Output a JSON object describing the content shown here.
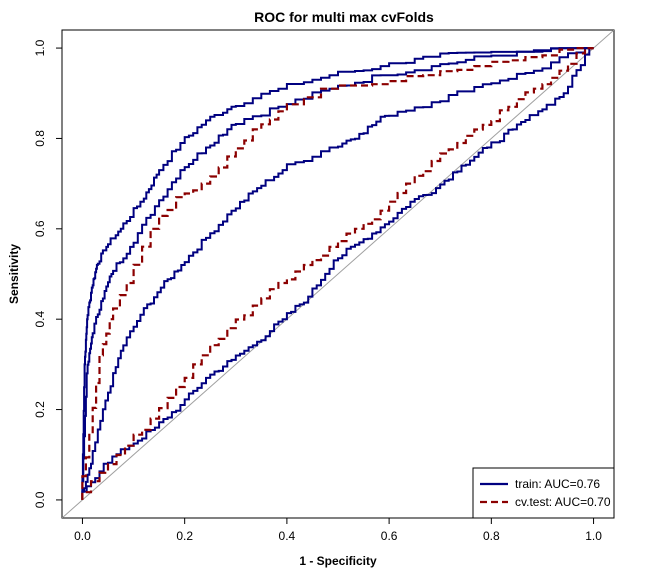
{
  "chart_data": {
    "type": "line",
    "title": "ROC for multi max cvFolds",
    "xlabel": "1 - Specificity",
    "ylabel": "Sensitivity",
    "xlim": [
      -0.04,
      1.04
    ],
    "ylim": [
      -0.04,
      1.04
    ],
    "x_ticks": [
      "0.0",
      "0.2",
      "0.4",
      "0.6",
      "0.8",
      "1.0"
    ],
    "y_ticks": [
      "0.0",
      "0.2",
      "0.4",
      "0.6",
      "0.8",
      "1.0"
    ],
    "grid": false,
    "legend_position": "bottom-right",
    "diagonal_reference": true,
    "series": [
      {
        "name": "train: AUC=0.76",
        "color": "#000080",
        "style": "solid",
        "curves": [
          {
            "role": "upper",
            "points": [
              [
                0,
                0
              ],
              [
                0.005,
                0.3
              ],
              [
                0.01,
                0.4
              ],
              [
                0.02,
                0.47
              ],
              [
                0.03,
                0.52
              ],
              [
                0.05,
                0.56
              ],
              [
                0.08,
                0.6
              ],
              [
                0.12,
                0.66
              ],
              [
                0.15,
                0.72
              ],
              [
                0.2,
                0.79
              ],
              [
                0.25,
                0.84
              ],
              [
                0.3,
                0.87
              ],
              [
                0.4,
                0.91
              ],
              [
                0.5,
                0.94
              ],
              [
                0.6,
                0.96
              ],
              [
                0.7,
                0.98
              ],
              [
                0.8,
                0.99
              ],
              [
                0.9,
                0.995
              ],
              [
                1,
                1
              ]
            ]
          },
          {
            "role": "mid",
            "points": [
              [
                0,
                0
              ],
              [
                0.01,
                0.28
              ],
              [
                0.02,
                0.36
              ],
              [
                0.04,
                0.44
              ],
              [
                0.06,
                0.5
              ],
              [
                0.1,
                0.56
              ],
              [
                0.15,
                0.65
              ],
              [
                0.2,
                0.73
              ],
              [
                0.25,
                0.78
              ],
              [
                0.3,
                0.83
              ],
              [
                0.4,
                0.87
              ],
              [
                0.5,
                0.91
              ],
              [
                0.6,
                0.94
              ],
              [
                0.7,
                0.96
              ],
              [
                0.8,
                0.98
              ],
              [
                0.9,
                0.99
              ],
              [
                1,
                1
              ]
            ]
          },
          {
            "role": "center",
            "points": [
              [
                0,
                0
              ],
              [
                0.02,
                0.08
              ],
              [
                0.05,
                0.22
              ],
              [
                0.08,
                0.33
              ],
              [
                0.12,
                0.41
              ],
              [
                0.16,
                0.47
              ],
              [
                0.2,
                0.52
              ],
              [
                0.25,
                0.58
              ],
              [
                0.3,
                0.64
              ],
              [
                0.35,
                0.69
              ],
              [
                0.4,
                0.73
              ],
              [
                0.5,
                0.78
              ],
              [
                0.55,
                0.81
              ],
              [
                0.6,
                0.85
              ],
              [
                0.7,
                0.88
              ],
              [
                0.8,
                0.92
              ],
              [
                0.9,
                0.95
              ],
              [
                1,
                1
              ]
            ]
          },
          {
            "role": "lower",
            "points": [
              [
                0,
                0
              ],
              [
                0.05,
                0.08
              ],
              [
                0.1,
                0.12
              ],
              [
                0.15,
                0.16
              ],
              [
                0.2,
                0.21
              ],
              [
                0.25,
                0.27
              ],
              [
                0.3,
                0.31
              ],
              [
                0.35,
                0.35
              ],
              [
                0.4,
                0.4
              ],
              [
                0.45,
                0.45
              ],
              [
                0.5,
                0.53
              ],
              [
                0.55,
                0.57
              ],
              [
                0.6,
                0.61
              ],
              [
                0.65,
                0.66
              ],
              [
                0.7,
                0.69
              ],
              [
                0.75,
                0.74
              ],
              [
                0.8,
                0.78
              ],
              [
                0.85,
                0.82
              ],
              [
                0.9,
                0.86
              ],
              [
                0.95,
                0.9
              ],
              [
                1,
                1
              ]
            ]
          }
        ]
      },
      {
        "name": "cv.test: AUC=0.70",
        "color": "#8b0000",
        "style": "dashed",
        "curves": [
          {
            "role": "upper",
            "points": [
              [
                0,
                0
              ],
              [
                0.02,
                0.15
              ],
              [
                0.04,
                0.32
              ],
              [
                0.06,
                0.4
              ],
              [
                0.1,
                0.48
              ],
              [
                0.15,
                0.6
              ],
              [
                0.2,
                0.67
              ],
              [
                0.25,
                0.7
              ],
              [
                0.3,
                0.76
              ],
              [
                0.35,
                0.82
              ],
              [
                0.4,
                0.86
              ],
              [
                0.5,
                0.91
              ],
              [
                0.6,
                0.92
              ],
              [
                0.7,
                0.94
              ],
              [
                0.8,
                0.96
              ],
              [
                0.9,
                0.98
              ],
              [
                1,
                1
              ]
            ]
          },
          {
            "role": "lower",
            "points": [
              [
                0,
                0
              ],
              [
                0.05,
                0.06
              ],
              [
                0.1,
                0.12
              ],
              [
                0.15,
                0.18
              ],
              [
                0.2,
                0.25
              ],
              [
                0.25,
                0.32
              ],
              [
                0.3,
                0.38
              ],
              [
                0.35,
                0.43
              ],
              [
                0.4,
                0.48
              ],
              [
                0.45,
                0.52
              ],
              [
                0.5,
                0.56
              ],
              [
                0.55,
                0.6
              ],
              [
                0.6,
                0.64
              ],
              [
                0.65,
                0.7
              ],
              [
                0.7,
                0.75
              ],
              [
                0.75,
                0.79
              ],
              [
                0.8,
                0.83
              ],
              [
                0.85,
                0.87
              ],
              [
                0.9,
                0.91
              ],
              [
                0.95,
                0.95
              ],
              [
                1,
                1
              ]
            ]
          }
        ]
      }
    ]
  }
}
